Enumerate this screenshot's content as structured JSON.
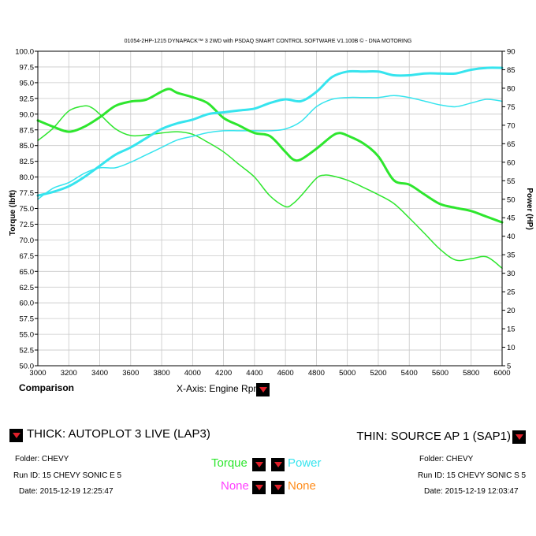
{
  "header": {
    "title": "01054-2HP-1215 DYNAPACK™ 3 2WD with PSDAQ SMART CONTROL SOFTWARE V1.100B © - DNA MOTORING"
  },
  "chart_data": {
    "type": "line",
    "title": "01054-2HP-1215 DYNAPACK™ 3 2WD with PSDAQ SMART CONTROL SOFTWARE V1.100B © - DNA MOTORING",
    "xlabel": "Engine Rpm",
    "ylabel": "Torque (lbft)",
    "y2label": "Power (HP)",
    "xlim": [
      3000,
      6000
    ],
    "ylim": [
      50,
      100
    ],
    "y2lim": [
      5,
      90
    ],
    "grid": true,
    "x_ticks": [
      "3000",
      "3200",
      "3400",
      "3600",
      "3800",
      "4000",
      "4200",
      "4400",
      "4600",
      "4800",
      "5000",
      "5200",
      "5400",
      "5600",
      "5800",
      "6000"
    ],
    "y_ticks": [
      "50.0",
      "52.5",
      "55.0",
      "57.5",
      "60.0",
      "62.5",
      "65.0",
      "67.5",
      "70.0",
      "72.5",
      "75.0",
      "77.5",
      "80.0",
      "82.5",
      "85.0",
      "87.5",
      "90.0",
      "92.5",
      "95.0",
      "97.5",
      "100.0"
    ],
    "y2_ticks": [
      "5",
      "10",
      "15",
      "20",
      "25",
      "30",
      "35",
      "40",
      "45",
      "50",
      "55",
      "60",
      "65",
      "70",
      "75",
      "80",
      "85",
      "90"
    ],
    "series": [
      {
        "name": "Torque",
        "run": "THICK",
        "axis": "left",
        "color": "#2ee62e",
        "width": 3,
        "x": [
          3000,
          3100,
          3200,
          3300,
          3400,
          3500,
          3600,
          3700,
          3800,
          3850,
          3900,
          4000,
          4100,
          4200,
          4300,
          4400,
          4500,
          4600,
          4650,
          4700,
          4800,
          4900,
          4950,
          5000,
          5100,
          5200,
          5300,
          5400,
          5500,
          5600,
          5700,
          5800,
          5900,
          6000
        ],
        "y": [
          89,
          88,
          87.2,
          88,
          89.5,
          91.3,
          92,
          92.3,
          93.6,
          94,
          93.4,
          92.7,
          91.7,
          89.4,
          88.2,
          87,
          86.5,
          84,
          82.8,
          82.8,
          84.5,
          86.5,
          87,
          86.6,
          85.4,
          83.3,
          79.5,
          78.8,
          77.2,
          75.7,
          75.1,
          74.6,
          73.7,
          72.8
        ]
      },
      {
        "name": "Power",
        "run": "THICK",
        "axis": "right",
        "color": "#36e4ee",
        "width": 3,
        "x": [
          3000,
          3100,
          3200,
          3300,
          3400,
          3500,
          3600,
          3700,
          3800,
          3900,
          4000,
          4100,
          4200,
          4300,
          4400,
          4500,
          4600,
          4700,
          4800,
          4900,
          5000,
          5100,
          5200,
          5300,
          5400,
          5500,
          5600,
          5700,
          5800,
          5900,
          6000
        ],
        "y": [
          51,
          52,
          53.5,
          56,
          59,
          62,
          64,
          66.5,
          69,
          70.5,
          71.5,
          73,
          73.5,
          74,
          74.5,
          76,
          77,
          76.5,
          79,
          83,
          84.5,
          84.5,
          84.5,
          83.5,
          83.5,
          84,
          84,
          84,
          85,
          85.5,
          85.5
        ]
      },
      {
        "name": "Torque",
        "run": "THIN",
        "axis": "left",
        "color": "#2ee62e",
        "width": 1.5,
        "x": [
          3000,
          3100,
          3200,
          3300,
          3350,
          3400,
          3500,
          3600,
          3700,
          3800,
          3900,
          4000,
          4100,
          4200,
          4300,
          4400,
          4500,
          4600,
          4650,
          4700,
          4800,
          4850,
          4900,
          5000,
          5100,
          5200,
          5300,
          5400,
          5500,
          5600,
          5700,
          5800,
          5900,
          6000
        ],
        "y": [
          85.8,
          87.8,
          90.5,
          91.3,
          91,
          90,
          87.7,
          86.6,
          86.7,
          87,
          87.2,
          86.8,
          85.5,
          84,
          82,
          80,
          77,
          75.3,
          75.8,
          77,
          79.8,
          80.3,
          80.2,
          79.5,
          78.4,
          77.2,
          75.8,
          73.5,
          71,
          68.5,
          66.8,
          67,
          67.3,
          65.5
        ]
      },
      {
        "name": "Power",
        "run": "THIN",
        "axis": "right",
        "color": "#36e4ee",
        "width": 1.5,
        "x": [
          3000,
          3100,
          3200,
          3300,
          3400,
          3500,
          3600,
          3700,
          3800,
          3900,
          4000,
          4100,
          4200,
          4300,
          4400,
          4500,
          4600,
          4700,
          4800,
          4900,
          5000,
          5100,
          5200,
          5300,
          5400,
          5500,
          5600,
          5700,
          5800,
          5900,
          6000
        ],
        "y": [
          50,
          53,
          54.5,
          57,
          58.5,
          58.5,
          60,
          62,
          64,
          66,
          67,
          68,
          68.5,
          68.5,
          68.5,
          68.5,
          69,
          71,
          75,
          77,
          77.5,
          77.5,
          77.5,
          78,
          77.5,
          76.5,
          75.5,
          75,
          76,
          77,
          76.5
        ]
      }
    ]
  },
  "comparison_label": "Comparison",
  "x_axis_selector": {
    "label": "X-Axis: Engine Rpm"
  },
  "run_left": {
    "title": "THICK: AUTOPLOT 3 LIVE (LAP3)",
    "folder": "Folder: CHEVY",
    "run_id": "Run ID: 15 CHEVY SONIC E 5",
    "date": "Date: 2015-12-19 12:25:47"
  },
  "run_right": {
    "title": "THIN: SOURCE AP 1 (SAP1)",
    "folder": "Folder: CHEVY",
    "run_id": "Run ID: 15 CHEVY SONIC S 5",
    "date": "Date: 2015-12-19 12:03:47"
  },
  "legend": {
    "channel1": {
      "label": "Torque",
      "color": "#2ee62e"
    },
    "channel2": {
      "label": "Power",
      "color": "#36e4ee"
    },
    "channel3": {
      "label": "None",
      "color": "#ff40ff"
    },
    "channel4": {
      "label": "None",
      "color": "#ff8c1a"
    }
  },
  "colors": {
    "dropdown_bg": "#000000",
    "dropdown_arrow": "#e0202a",
    "grid": "#c8c8c8"
  }
}
